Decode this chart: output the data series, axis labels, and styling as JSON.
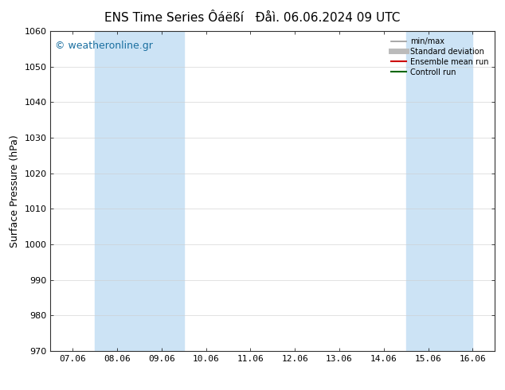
{
  "title": "ENS Time Series Ôáëßí",
  "subtitle": "Đåì. 06.06.2024 09 UTC",
  "ylabel": "Surface Pressure (hPa)",
  "ylim": [
    970,
    1060
  ],
  "yticks": [
    970,
    980,
    990,
    1000,
    1010,
    1020,
    1030,
    1040,
    1050,
    1060
  ],
  "xtick_labels": [
    "07.06",
    "08.06",
    "09.06",
    "10.06",
    "11.06",
    "12.06",
    "13.06",
    "14.06",
    "15.06",
    "16.06"
  ],
  "x_values": [
    0,
    1,
    2,
    3,
    4,
    5,
    6,
    7,
    8,
    9
  ],
  "xlim": [
    -0.5,
    9.5
  ],
  "shaded_bands": [
    {
      "xmin": 1,
      "xmax": 3,
      "color": "#cce3f5"
    },
    {
      "xmin": 8,
      "xmax": 9.5,
      "color": "#cce3f5"
    }
  ],
  "legend_entries": [
    {
      "label": "min/max",
      "color": "#999999",
      "lw": 1.2,
      "style": "-"
    },
    {
      "label": "Standard deviation",
      "color": "#bbbbbb",
      "lw": 5.0,
      "style": "-"
    },
    {
      "label": "Ensemble mean run",
      "color": "#cc0000",
      "lw": 1.5,
      "style": "-"
    },
    {
      "label": "Controll run",
      "color": "#006600",
      "lw": 1.5,
      "style": "-"
    }
  ],
  "watermark": "© weatheronline.gr",
  "watermark_color": "#1a6fa0",
  "bg_color": "#ffffff",
  "plot_bg_color": "#ffffff",
  "title_fontsize": 11,
  "ylabel_fontsize": 9,
  "tick_fontsize": 8,
  "legend_fontsize": 7,
  "watermark_fontsize": 9
}
